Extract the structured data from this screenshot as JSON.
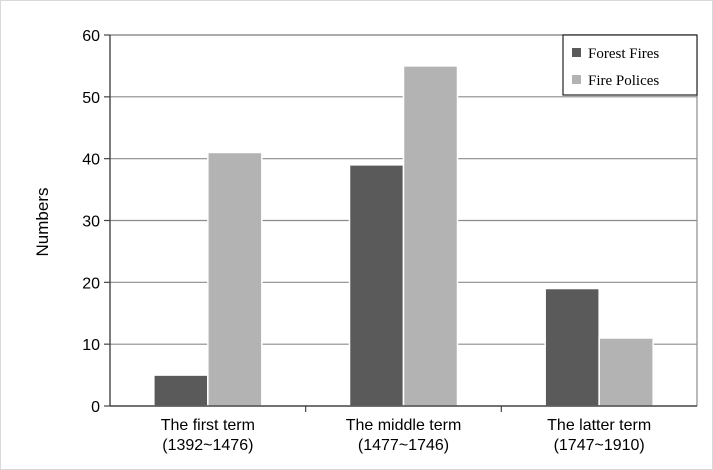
{
  "chart_data": {
    "type": "bar",
    "categories": [
      [
        "The first term",
        "(1392~1476)"
      ],
      [
        "The middle term",
        "(1477~1746)"
      ],
      [
        "The latter term",
        "(1747~1910)"
      ]
    ],
    "series": [
      {
        "name": "Forest Fires",
        "values": [
          5,
          39,
          19
        ],
        "color": "#5a5a5a"
      },
      {
        "name": "Fire Polices",
        "values": [
          41,
          55,
          11
        ],
        "color": "#b3b3b3"
      }
    ],
    "ylabel": "Numbers",
    "ylim": [
      0,
      60
    ],
    "yticks": [
      0,
      10,
      20,
      30,
      40,
      50,
      60
    ],
    "grid": true,
    "legend": "top-right"
  }
}
